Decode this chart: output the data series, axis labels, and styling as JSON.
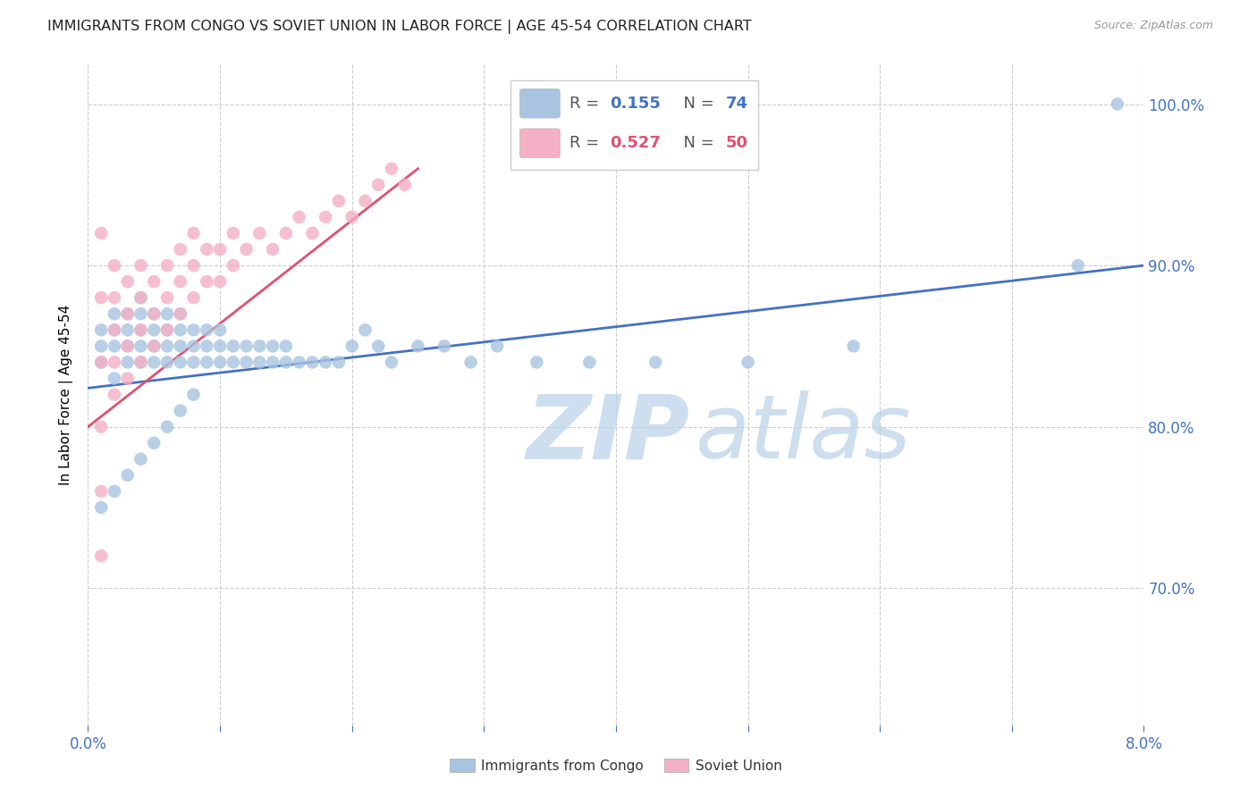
{
  "title": "IMMIGRANTS FROM CONGO VS SOVIET UNION IN LABOR FORCE | AGE 45-54 CORRELATION CHART",
  "source": "Source: ZipAtlas.com",
  "ylabel": "In Labor Force | Age 45-54",
  "xlim": [
    0.0,
    0.08
  ],
  "ylim": [
    0.615,
    1.025
  ],
  "xticks": [
    0.0,
    0.01,
    0.02,
    0.03,
    0.04,
    0.05,
    0.06,
    0.07,
    0.08
  ],
  "xtick_labels": [
    "0.0%",
    "",
    "",
    "",
    "",
    "",
    "",
    "",
    "8.0%"
  ],
  "yticks": [
    0.7,
    0.8,
    0.9,
    1.0
  ],
  "ytick_labels": [
    "70.0%",
    "80.0%",
    "90.0%",
    "100.0%"
  ],
  "congo_color": "#a8c4e0",
  "soviet_color": "#f4b0c4",
  "congo_line_color": "#4472c4",
  "soviet_line_color": "#e05070",
  "watermark_color": "#ccdff0",
  "legend_R_congo": "0.155",
  "legend_N_congo": "74",
  "legend_R_soviet": "0.527",
  "legend_N_soviet": "50",
  "legend_label_congo": "Immigrants from Congo",
  "legend_label_soviet": "Soviet Union",
  "grid_color": "#cccccc",
  "title_color": "#222222",
  "tick_color": "#4472c4",
  "congo_scatter_x": [
    0.001,
    0.001,
    0.001,
    0.002,
    0.002,
    0.002,
    0.002,
    0.003,
    0.003,
    0.003,
    0.003,
    0.004,
    0.004,
    0.004,
    0.004,
    0.004,
    0.005,
    0.005,
    0.005,
    0.005,
    0.006,
    0.006,
    0.006,
    0.006,
    0.007,
    0.007,
    0.007,
    0.007,
    0.008,
    0.008,
    0.008,
    0.009,
    0.009,
    0.009,
    0.01,
    0.01,
    0.01,
    0.011,
    0.011,
    0.012,
    0.012,
    0.013,
    0.013,
    0.014,
    0.014,
    0.015,
    0.015,
    0.016,
    0.017,
    0.018,
    0.019,
    0.02,
    0.021,
    0.022,
    0.023,
    0.025,
    0.027,
    0.029,
    0.031,
    0.034,
    0.038,
    0.043,
    0.05,
    0.058,
    0.001,
    0.002,
    0.003,
    0.004,
    0.005,
    0.006,
    0.007,
    0.008,
    0.075,
    0.078
  ],
  "congo_scatter_y": [
    0.84,
    0.85,
    0.86,
    0.83,
    0.85,
    0.86,
    0.87,
    0.84,
    0.85,
    0.86,
    0.87,
    0.84,
    0.85,
    0.86,
    0.87,
    0.88,
    0.84,
    0.85,
    0.86,
    0.87,
    0.84,
    0.85,
    0.86,
    0.87,
    0.84,
    0.85,
    0.86,
    0.87,
    0.84,
    0.85,
    0.86,
    0.84,
    0.85,
    0.86,
    0.84,
    0.85,
    0.86,
    0.84,
    0.85,
    0.84,
    0.85,
    0.84,
    0.85,
    0.84,
    0.85,
    0.84,
    0.85,
    0.84,
    0.84,
    0.84,
    0.84,
    0.85,
    0.86,
    0.85,
    0.84,
    0.85,
    0.85,
    0.84,
    0.85,
    0.84,
    0.84,
    0.84,
    0.84,
    0.85,
    0.75,
    0.76,
    0.77,
    0.78,
    0.79,
    0.8,
    0.81,
    0.82,
    0.9,
    1.0
  ],
  "soviet_scatter_x": [
    0.001,
    0.001,
    0.001,
    0.001,
    0.001,
    0.001,
    0.002,
    0.002,
    0.002,
    0.002,
    0.002,
    0.003,
    0.003,
    0.003,
    0.003,
    0.004,
    0.004,
    0.004,
    0.004,
    0.005,
    0.005,
    0.005,
    0.006,
    0.006,
    0.006,
    0.007,
    0.007,
    0.007,
    0.008,
    0.008,
    0.008,
    0.009,
    0.009,
    0.01,
    0.01,
    0.011,
    0.011,
    0.012,
    0.013,
    0.014,
    0.015,
    0.016,
    0.017,
    0.018,
    0.019,
    0.02,
    0.021,
    0.022,
    0.023,
    0.024
  ],
  "soviet_scatter_y": [
    0.72,
    0.76,
    0.8,
    0.84,
    0.88,
    0.92,
    0.82,
    0.84,
    0.86,
    0.88,
    0.9,
    0.83,
    0.85,
    0.87,
    0.89,
    0.84,
    0.86,
    0.88,
    0.9,
    0.85,
    0.87,
    0.89,
    0.86,
    0.88,
    0.9,
    0.87,
    0.89,
    0.91,
    0.88,
    0.9,
    0.92,
    0.89,
    0.91,
    0.89,
    0.91,
    0.9,
    0.92,
    0.91,
    0.92,
    0.91,
    0.92,
    0.93,
    0.92,
    0.93,
    0.94,
    0.93,
    0.94,
    0.95,
    0.96,
    0.95
  ],
  "congo_trend_x": [
    0.0,
    0.08
  ],
  "congo_trend_y": [
    0.824,
    0.9
  ],
  "soviet_trend_x": [
    0.0,
    0.025
  ],
  "soviet_trend_y": [
    0.8,
    0.96
  ]
}
